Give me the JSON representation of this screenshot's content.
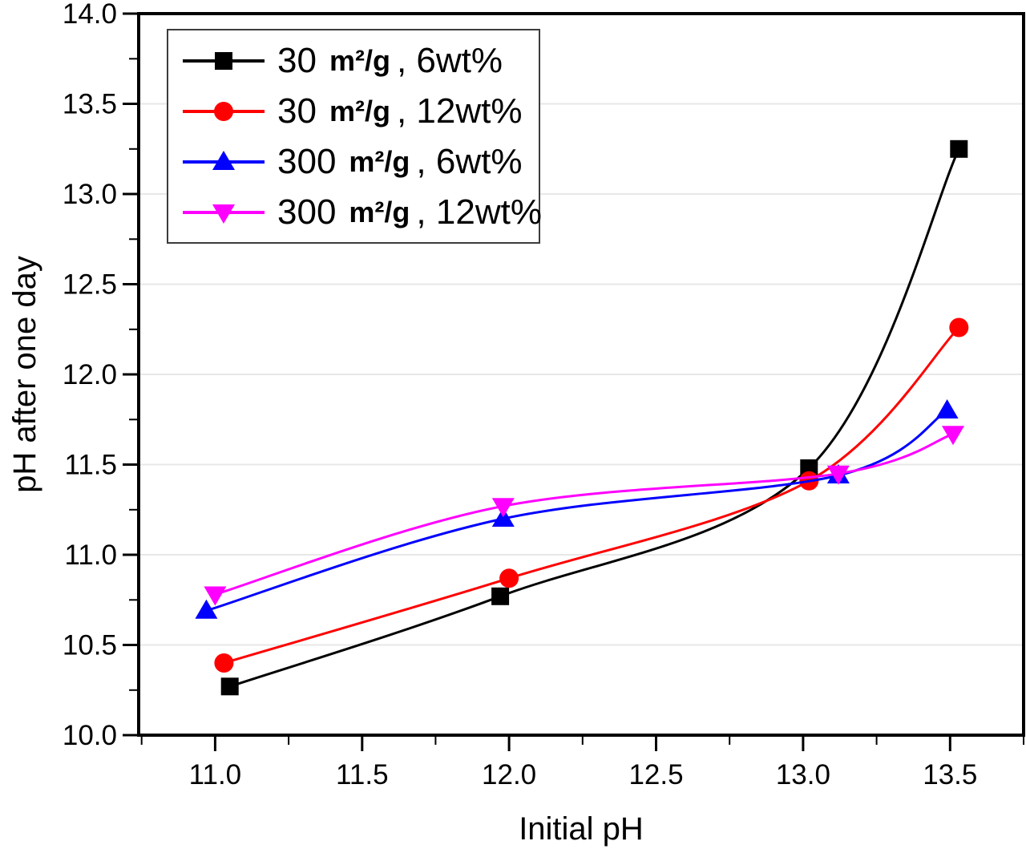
{
  "chart_data": {
    "type": "line",
    "title": "",
    "xlabel": "Initial pH",
    "ylabel": "pH after one day",
    "xlim": [
      10.74,
      13.75
    ],
    "ylim": [
      10.0,
      14.0
    ],
    "x_major_ticks": [
      11.0,
      11.5,
      12.0,
      12.5,
      13.0,
      13.5
    ],
    "y_major_ticks": [
      10.0,
      10.5,
      11.0,
      11.5,
      12.0,
      12.5,
      13.0,
      13.5,
      14.0
    ],
    "x_minor_step": 0.25,
    "y_minor_step": 0.25,
    "tick_decimals": 1,
    "grid": "horizontal-only",
    "grid_color": "#e7e7e7",
    "frame_color": "#000000",
    "legend_position": "top-left",
    "series": [
      {
        "name": "30 m²/g , 6wt%",
        "legend": {
          "qty": "30",
          "unit": "m²/g",
          "rest": ", 6wt%"
        },
        "color": "#000000",
        "marker": "square",
        "points": [
          [
            11.05,
            10.27
          ],
          [
            11.97,
            10.77
          ],
          [
            13.02,
            11.48
          ],
          [
            13.53,
            13.25
          ]
        ]
      },
      {
        "name": "30 m²/g , 12wt%",
        "legend": {
          "qty": "30",
          "unit": "m²/g",
          "rest": ", 12wt%"
        },
        "color": "#ff0000",
        "marker": "circle",
        "points": [
          [
            11.03,
            10.4
          ],
          [
            12.0,
            10.87
          ],
          [
            13.02,
            11.41
          ],
          [
            13.53,
            12.26
          ]
        ]
      },
      {
        "name": "300 m²/g , 6wt%",
        "legend": {
          "qty": "300",
          "unit": "m²/g",
          "rest": ", 6wt%"
        },
        "color": "#0000ff",
        "marker": "triangle-up",
        "points": [
          [
            10.97,
            10.69
          ],
          [
            11.98,
            11.2
          ],
          [
            13.12,
            11.44
          ],
          [
            13.49,
            11.8
          ]
        ]
      },
      {
        "name": "300 m²/g , 12wt%",
        "legend": {
          "qty": "300",
          "unit": "m²/g",
          "rest": ", 12wt%"
        },
        "color": "#ff00ff",
        "marker": "triangle-down",
        "points": [
          [
            11.0,
            10.78
          ],
          [
            11.98,
            11.27
          ],
          [
            13.12,
            11.45
          ],
          [
            13.51,
            11.67
          ]
        ]
      }
    ]
  }
}
